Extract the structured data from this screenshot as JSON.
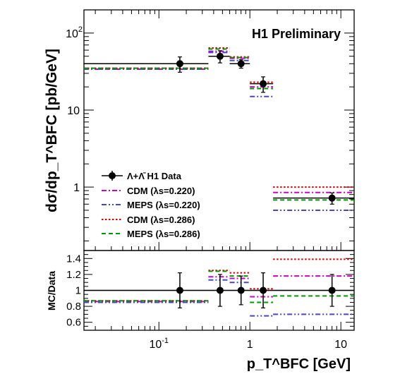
{
  "colors": {
    "data": "#000000",
    "cdm_0220": "#cc00cc",
    "meps_0220": "#4444cc",
    "cdm_0286": "#dd0000",
    "meps_0286": "#009900"
  },
  "chart_data": [
    {
      "type": "scatter",
      "panel": "main",
      "title": "H1 Preliminary",
      "xlabel": "p_T^BFC [GeV]",
      "ylabel": "dσ/dp_T^BFC [pb/GeV]",
      "xscale": "log",
      "yscale": "log",
      "xlim": [
        0.015,
        14
      ],
      "ylim": [
        0.15,
        200
      ],
      "x_tick_labels": [
        "10^-1",
        "1",
        "10"
      ],
      "y_tick_labels": [
        "1",
        "10",
        "10^2"
      ],
      "legend_position": "left",
      "bins": [
        [
          0.015,
          0.35
        ],
        [
          0.35,
          0.6
        ],
        [
          0.6,
          1.0
        ],
        [
          1.0,
          1.8
        ],
        [
          1.8,
          14
        ]
      ],
      "series": [
        {
          "name": "Λ+Λ̄ H1 Data",
          "style": "points",
          "x": [
            0.17,
            0.47,
            0.8,
            1.4,
            8.0
          ],
          "y": [
            40,
            50,
            40,
            22,
            0.72
          ],
          "yerr": [
            9,
            9,
            5,
            5,
            0.12
          ]
        },
        {
          "name": "CDM (λs=0.220)",
          "style": "dash-dot",
          "color_key": "cdm_0220",
          "values": [
            34,
            58,
            47,
            20,
            0.85
          ]
        },
        {
          "name": "MEPS (λs=0.220)",
          "style": "dash-dot-dot",
          "color_key": "meps_0220",
          "values": [
            34,
            56,
            44,
            15,
            0.5
          ]
        },
        {
          "name": "CDM (λs=0.286)",
          "style": "dotted",
          "color_key": "cdm_0286",
          "values": [
            35,
            64,
            49,
            23,
            1.0
          ]
        },
        {
          "name": "MEPS (λs=0.286)",
          "style": "dashed",
          "color_key": "meps_0286",
          "values": [
            35,
            62,
            48,
            19,
            0.68
          ]
        }
      ]
    },
    {
      "type": "scatter",
      "panel": "ratio",
      "xlabel": "p_T^BFC [GeV]",
      "ylabel": "MC/Data",
      "xscale": "log",
      "xlim": [
        0.015,
        14
      ],
      "ylim": [
        0.5,
        1.5
      ],
      "y_tick_labels": [
        "0.6",
        "0.8",
        "1",
        "1.2",
        "1.4"
      ],
      "reference_line": 1.0,
      "series": [
        {
          "name": "Data",
          "style": "points",
          "x": [
            0.17,
            0.47,
            0.8,
            1.4,
            8.0
          ],
          "y": [
            1,
            1,
            1,
            1,
            1
          ],
          "yerr": [
            0.22,
            0.2,
            0.18,
            0.22,
            0.2
          ]
        },
        {
          "name": "CDM (λs=0.220)",
          "color_key": "cdm_0220",
          "values": [
            0.86,
            1.17,
            1.15,
            0.92,
            1.18
          ]
        },
        {
          "name": "MEPS (λs=0.220)",
          "color_key": "meps_0220",
          "values": [
            0.85,
            1.13,
            1.1,
            0.68,
            0.7
          ]
        },
        {
          "name": "CDM (λs=0.286)",
          "color_key": "cdm_0286",
          "values": [
            0.87,
            1.25,
            1.22,
            1.02,
            1.39
          ]
        },
        {
          "name": "MEPS (λs=0.286)",
          "color_key": "meps_0286",
          "values": [
            0.87,
            1.24,
            1.18,
            0.85,
            0.93
          ]
        }
      ]
    }
  ]
}
